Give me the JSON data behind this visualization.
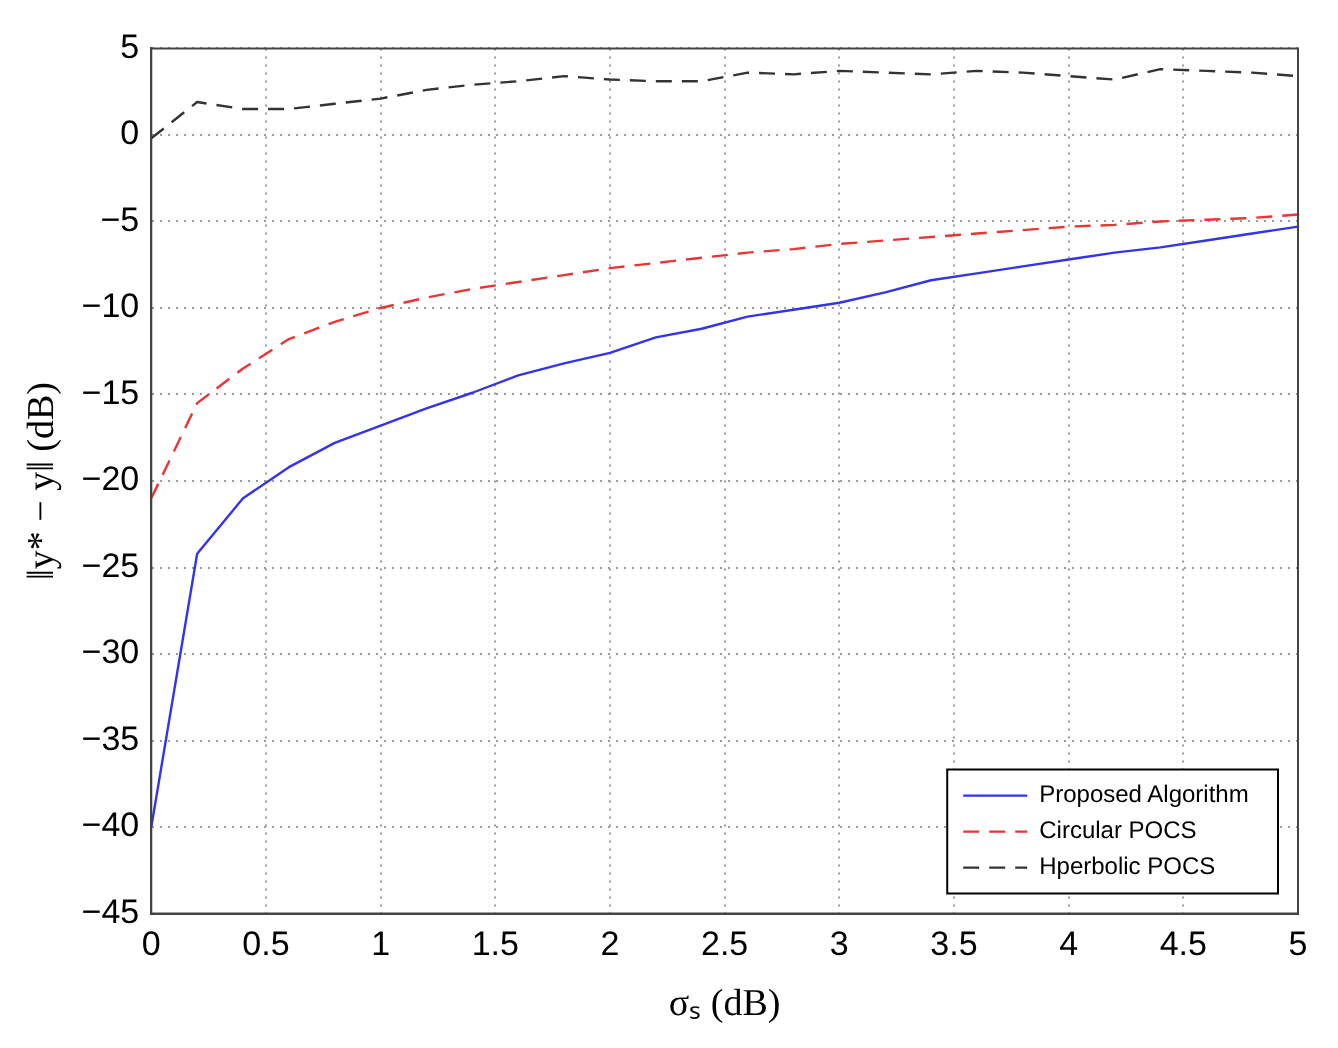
{
  "chart_data": {
    "type": "line",
    "xlabel": "σₛ (dB)",
    "ylabel": "‖y* − y‖ (dB)",
    "x": [
      0,
      0.2,
      0.4,
      0.6,
      0.8,
      1.0,
      1.2,
      1.4,
      1.6,
      1.8,
      2.0,
      2.2,
      2.4,
      2.6,
      2.8,
      3.0,
      3.2,
      3.4,
      3.6,
      3.8,
      4.0,
      4.2,
      4.4,
      4.6,
      4.8,
      5.0
    ],
    "series": [
      {
        "name": "Proposed Algorithm",
        "color": "#3333ee",
        "line_style": "solid",
        "values": [
          -40,
          -24.2,
          -21,
          -19.2,
          -17.8,
          -16.8,
          -15.8,
          -14.9,
          -13.9,
          -13.2,
          -12.6,
          -11.7,
          -11.2,
          -10.5,
          -10.1,
          -9.7,
          -9.1,
          -8.4,
          -8.0,
          -7.6,
          -7.2,
          -6.8,
          -6.5,
          -6.1,
          -5.7,
          -5.3
        ]
      },
      {
        "name": "Circular POCS",
        "color": "#ee3333",
        "line_style": "dashed",
        "values": [
          -21,
          -15.5,
          -13.5,
          -11.8,
          -10.8,
          -10.0,
          -9.4,
          -8.9,
          -8.5,
          -8.1,
          -7.7,
          -7.4,
          -7.1,
          -6.8,
          -6.6,
          -6.3,
          -6.1,
          -5.9,
          -5.7,
          -5.5,
          -5.3,
          -5.2,
          -5.0,
          -4.9,
          -4.8,
          -4.6
        ]
      },
      {
        "name": "Hperbolic POCS",
        "color": "#333333",
        "line_style": "dashed",
        "values": [
          -0.2,
          1.9,
          1.5,
          1.5,
          1.8,
          2.1,
          2.6,
          2.9,
          3.1,
          3.4,
          3.2,
          3.1,
          3.1,
          3.6,
          3.5,
          3.7,
          3.6,
          3.5,
          3.7,
          3.6,
          3.4,
          3.2,
          3.8,
          3.7,
          3.6,
          3.4
        ]
      }
    ],
    "xlim": [
      0,
      5
    ],
    "xticks": [
      0,
      0.5,
      1,
      1.5,
      2,
      2.5,
      3,
      3.5,
      4,
      4.5,
      5
    ],
    "ylim": [
      -45,
      5
    ],
    "yticks": [
      -45,
      -40,
      -35,
      -30,
      -25,
      -20,
      -15,
      -10,
      -5,
      0,
      5
    ],
    "grid": true,
    "legend": "bottom right",
    "marker": "none"
  }
}
